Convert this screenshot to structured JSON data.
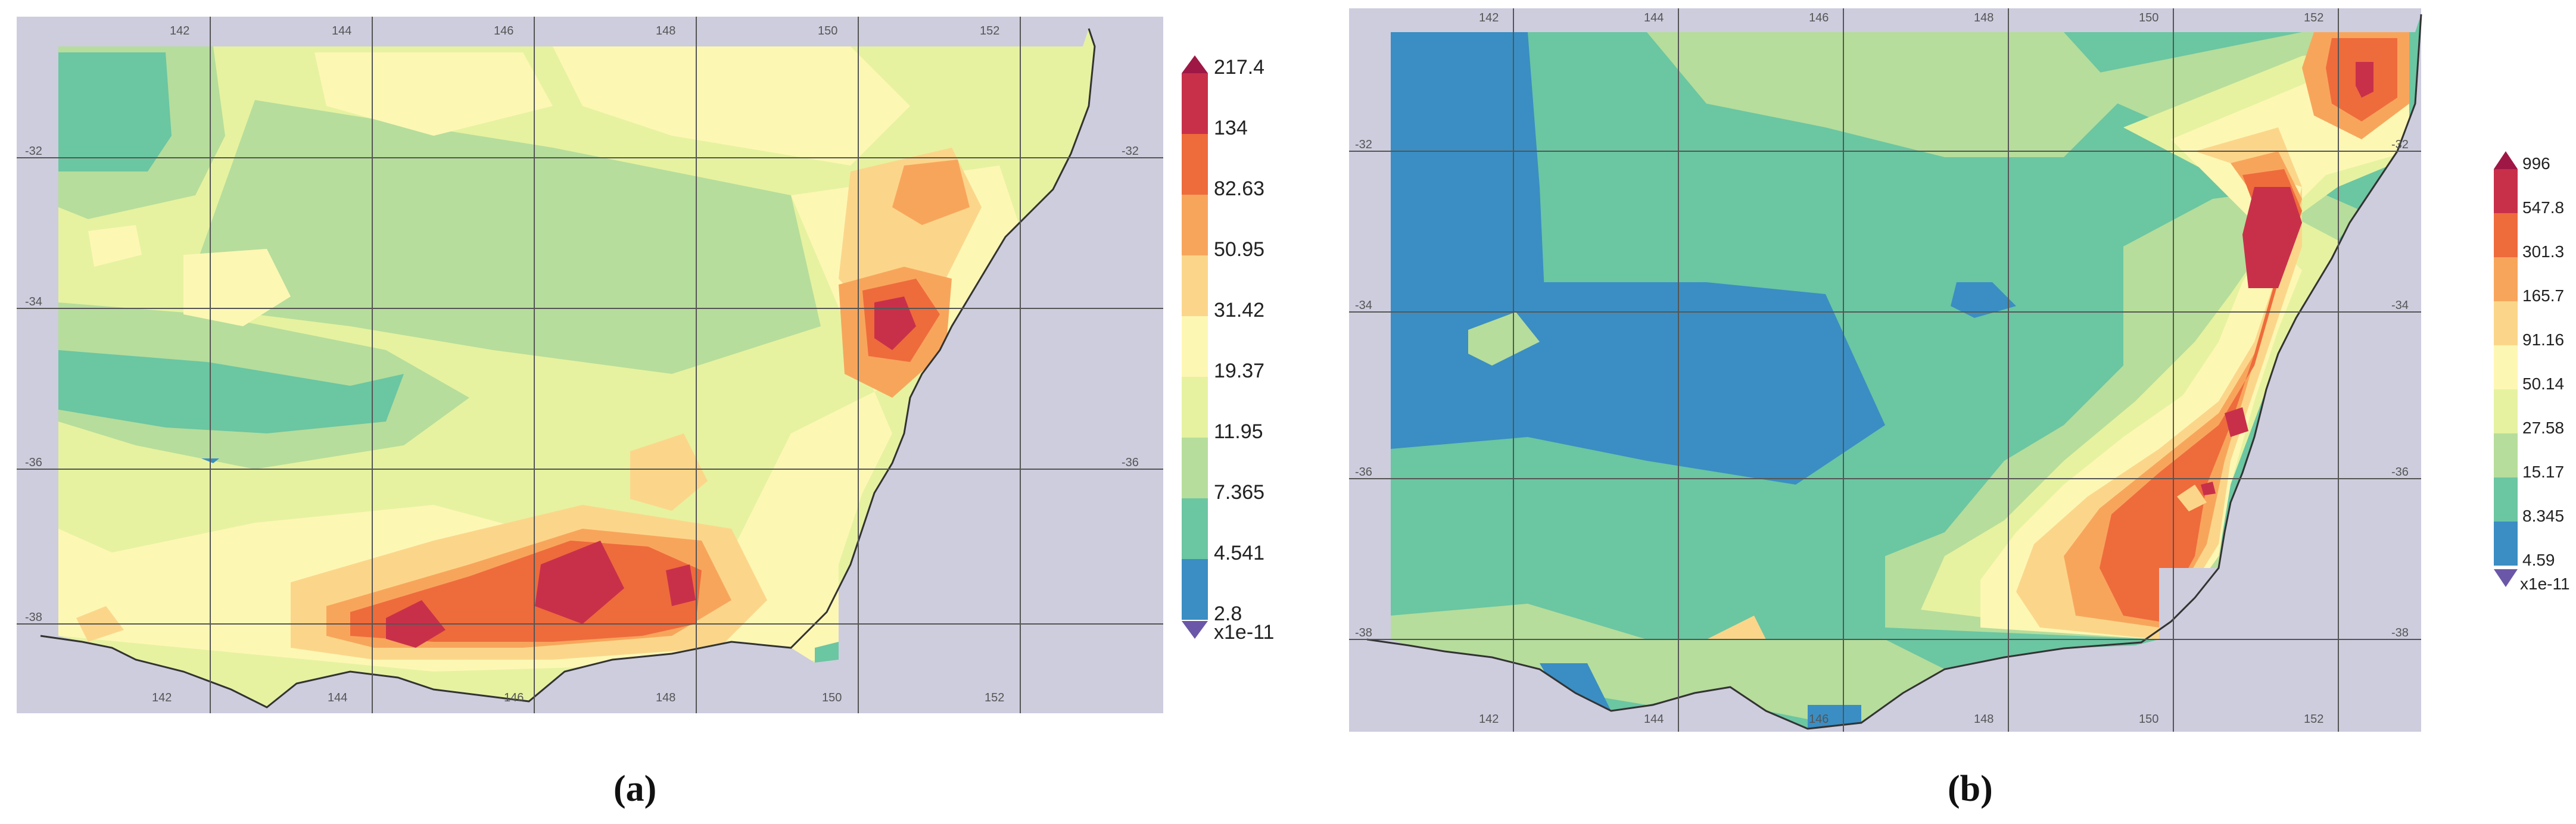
{
  "panels": [
    {
      "id": "a",
      "caption": "(a)",
      "lon_ticks_top": [
        "142",
        "144",
        "146",
        "148",
        "150",
        "152"
      ],
      "lon_ticks_bottom": [
        "142",
        "144",
        "146",
        "148",
        "150",
        "152"
      ],
      "lat_ticks_left": [
        "-32",
        "-34",
        "-36",
        "-38"
      ],
      "lat_ticks_right": [
        "-32",
        "-36"
      ],
      "colorbar": {
        "labels": [
          "217.4",
          "134",
          "82.63",
          "50.95",
          "31.42",
          "19.37",
          "11.95",
          "7.365",
          "4.541",
          "2.8"
        ],
        "scale_label": "x1e-11",
        "colors": [
          "#c8304a",
          "#ee6b3c",
          "#f8a55c",
          "#fbd68a",
          "#fdf7b4",
          "#e6f2a0",
          "#b6dd9b",
          "#6bc6a2",
          "#3a8ec3"
        ],
        "over_color": "#9e1745",
        "under_color": "#6b57a8"
      }
    },
    {
      "id": "b",
      "caption": "(b)",
      "lon_ticks_top": [
        "142",
        "144",
        "146",
        "148",
        "150",
        "152"
      ],
      "lon_ticks_bottom": [
        "142",
        "144",
        "146",
        "148",
        "150",
        "152"
      ],
      "lat_ticks_left": [
        "-32",
        "-34",
        "-36",
        "-38"
      ],
      "lat_ticks_right": [
        "-32",
        "-34",
        "-36",
        "-38"
      ],
      "colorbar": {
        "labels": [
          "996",
          "547.8",
          "301.3",
          "165.7",
          "91.16",
          "50.14",
          "27.58",
          "15.17",
          "8.345",
          "4.59"
        ],
        "scale_label": "x1e-11",
        "colors": [
          "#c8304a",
          "#ee6b3c",
          "#f8a55c",
          "#fbd68a",
          "#fdf7b4",
          "#e6f2a0",
          "#b6dd9b",
          "#6bc6a2",
          "#3a8ec3"
        ],
        "over_color": "#9e1745",
        "under_color": "#6b57a8"
      }
    }
  ],
  "colors": {
    "ocean": "#cdcdde",
    "coast": "#333333",
    "grid": "#555555"
  }
}
